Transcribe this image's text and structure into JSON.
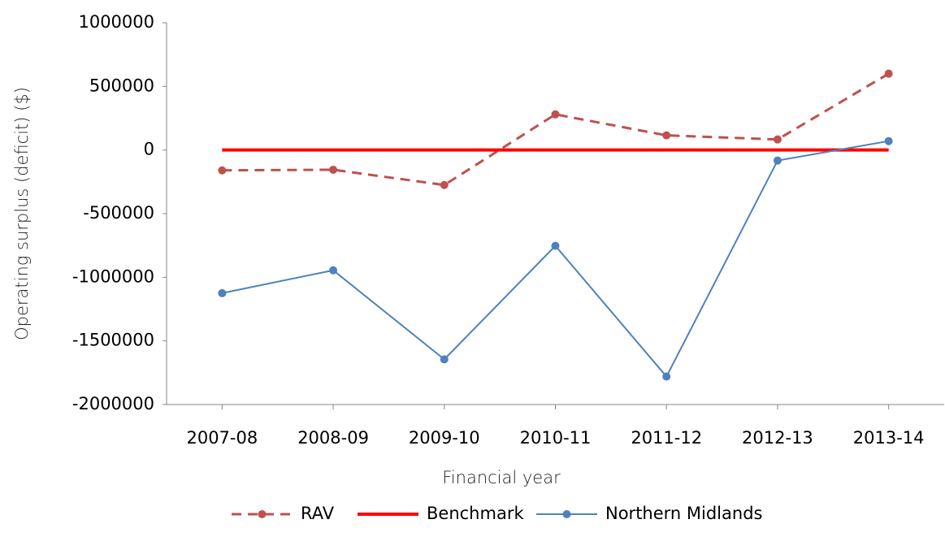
{
  "chart_data": {
    "type": "line",
    "y_label": "Operating surplus (deficit) ($)",
    "x_label": "Financial year",
    "categories": [
      "2007-08",
      "2008-09",
      "2009-10",
      "2010-11",
      "2011-12",
      "2012-13",
      "2013-14"
    ],
    "series": [
      {
        "name": "RAV",
        "color": "#c0504d",
        "dashed": true,
        "marker": true,
        "width": 3,
        "values": [
          -160000,
          -155000,
          -275000,
          280000,
          115000,
          83000,
          600000
        ]
      },
      {
        "name": "Benchmark",
        "color": "#ff0000",
        "dashed": false,
        "marker": false,
        "width": 4,
        "values": [
          0,
          0,
          0,
          0,
          0,
          0,
          0
        ]
      },
      {
        "name": "Northern Midlands",
        "color": "#4f81bd",
        "dashed": false,
        "marker": true,
        "width": 2,
        "values": [
          -1125000,
          -945000,
          -1645000,
          -753000,
          -1780000,
          -83000,
          70000
        ]
      }
    ],
    "ylim": [
      -2000000,
      1000000
    ],
    "yticks": [
      -2000000,
      -1500000,
      -1000000,
      -500000,
      0,
      500000,
      1000000
    ],
    "grid": false,
    "legend": "bottom"
  }
}
